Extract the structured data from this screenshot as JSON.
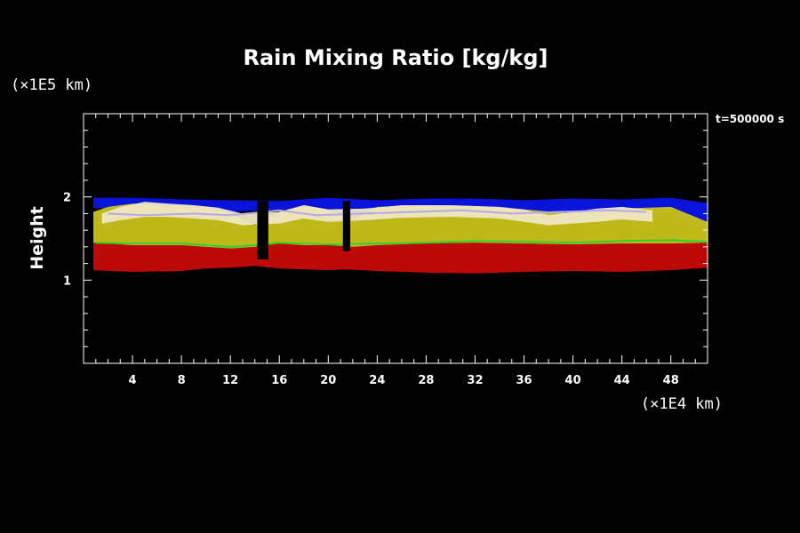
{
  "chart_data": {
    "type": "heatmap",
    "title": "Rain Mixing Ratio [kg/kg]",
    "ylabel": "Height",
    "x_unit": "(×1E4 km)",
    "y_unit": "(×1E5 km)",
    "time_label": "t=500000 s",
    "xlim": [
      0,
      51
    ],
    "ylim": [
      0,
      3
    ],
    "x_ticks": [
      4,
      8,
      12,
      16,
      20,
      24,
      28,
      32,
      36,
      40,
      44,
      48
    ],
    "y_ticks": [
      1,
      2
    ],
    "x_minor_step": 1,
    "y_minor_step": 0.2,
    "background": "#000000",
    "axis_color": "#ffffff",
    "bands": [
      {
        "name": "blue",
        "color": "#0a14e6",
        "x": [
          0.8,
          4,
          8,
          12,
          16,
          20,
          24,
          28,
          32,
          36,
          40,
          44,
          48,
          50.3,
          51
        ],
        "top": [
          1.99,
          1.99,
          1.97,
          1.96,
          1.95,
          1.99,
          1.96,
          1.98,
          1.98,
          1.96,
          1.98,
          1.97,
          1.99,
          1.94,
          1.93
        ],
        "bottom": [
          1.87,
          1.84,
          1.83,
          1.82,
          1.85,
          1.84,
          1.8,
          1.82,
          1.82,
          1.78,
          1.78,
          1.78,
          1.81,
          1.66,
          1.66
        ]
      },
      {
        "name": "red",
        "color": "#c80a0a",
        "x": [
          0.8,
          4,
          8,
          10,
          12,
          14,
          16,
          20,
          21.5,
          24,
          28,
          32,
          36,
          40,
          44,
          48,
          51
        ],
        "top": [
          1.45,
          1.44,
          1.42,
          1.4,
          1.38,
          1.4,
          1.44,
          1.42,
          1.4,
          1.42,
          1.44,
          1.45,
          1.44,
          1.43,
          1.44,
          1.44,
          1.45
        ],
        "bottom": [
          1.12,
          1.1,
          1.11,
          1.14,
          1.15,
          1.17,
          1.14,
          1.12,
          1.13,
          1.11,
          1.09,
          1.08,
          1.1,
          1.11,
          1.1,
          1.12,
          1.15
        ]
      },
      {
        "name": "yellow",
        "color": "#c9c21a",
        "x": [
          0.8,
          2,
          4,
          6,
          8,
          10,
          12,
          14,
          16,
          18,
          20,
          22,
          24,
          28,
          32,
          36,
          40,
          44,
          48,
          51
        ],
        "top": [
          1.82,
          1.88,
          1.92,
          1.9,
          1.9,
          1.88,
          1.8,
          1.66,
          1.82,
          1.9,
          1.85,
          1.72,
          1.88,
          1.9,
          1.89,
          1.85,
          1.8,
          1.86,
          1.88,
          1.7
        ],
        "bottom": [
          1.45,
          1.44,
          1.42,
          1.42,
          1.42,
          1.4,
          1.38,
          1.4,
          1.44,
          1.42,
          1.42,
          1.4,
          1.42,
          1.44,
          1.45,
          1.44,
          1.43,
          1.44,
          1.44,
          1.45
        ]
      },
      {
        "name": "light",
        "color": "#efe6c2",
        "x": [
          1.5,
          3,
          5,
          7,
          9,
          11,
          13,
          16,
          18,
          20,
          23,
          26,
          30,
          34,
          36,
          38,
          42,
          44,
          46.5
        ],
        "top": [
          1.8,
          1.88,
          1.94,
          1.92,
          1.9,
          1.87,
          1.8,
          1.82,
          1.9,
          1.85,
          1.86,
          1.9,
          1.9,
          1.88,
          1.85,
          1.78,
          1.86,
          1.88,
          1.84
        ],
        "bottom": [
          1.68,
          1.72,
          1.76,
          1.76,
          1.74,
          1.72,
          1.66,
          1.68,
          1.74,
          1.7,
          1.72,
          1.75,
          1.76,
          1.74,
          1.7,
          1.66,
          1.7,
          1.73,
          1.7
        ]
      }
    ],
    "contours": [
      {
        "name": "green",
        "color": "#2fd030",
        "x": [
          1,
          4,
          8,
          12,
          14,
          16,
          20,
          24,
          28,
          32,
          36,
          40,
          44,
          48,
          51
        ],
        "y": [
          1.45,
          1.44,
          1.44,
          1.4,
          1.42,
          1.45,
          1.43,
          1.44,
          1.45,
          1.47,
          1.46,
          1.45,
          1.47,
          1.48,
          1.46
        ]
      },
      {
        "name": "lavender",
        "color": "#b8a8e8",
        "x": [
          2,
          5,
          9,
          12,
          16,
          19,
          23,
          27,
          31,
          35,
          39,
          43,
          46
        ],
        "y": [
          1.8,
          1.78,
          1.8,
          1.78,
          1.84,
          1.78,
          1.8,
          1.82,
          1.84,
          1.8,
          1.82,
          1.84,
          1.82
        ]
      }
    ],
    "gaps": [
      {
        "x": [
          14.2,
          15.1
        ],
        "y_range": [
          1.25,
          1.95
        ]
      },
      {
        "x": [
          21.2,
          21.8
        ],
        "y_range": [
          1.35,
          1.95
        ]
      }
    ]
  }
}
